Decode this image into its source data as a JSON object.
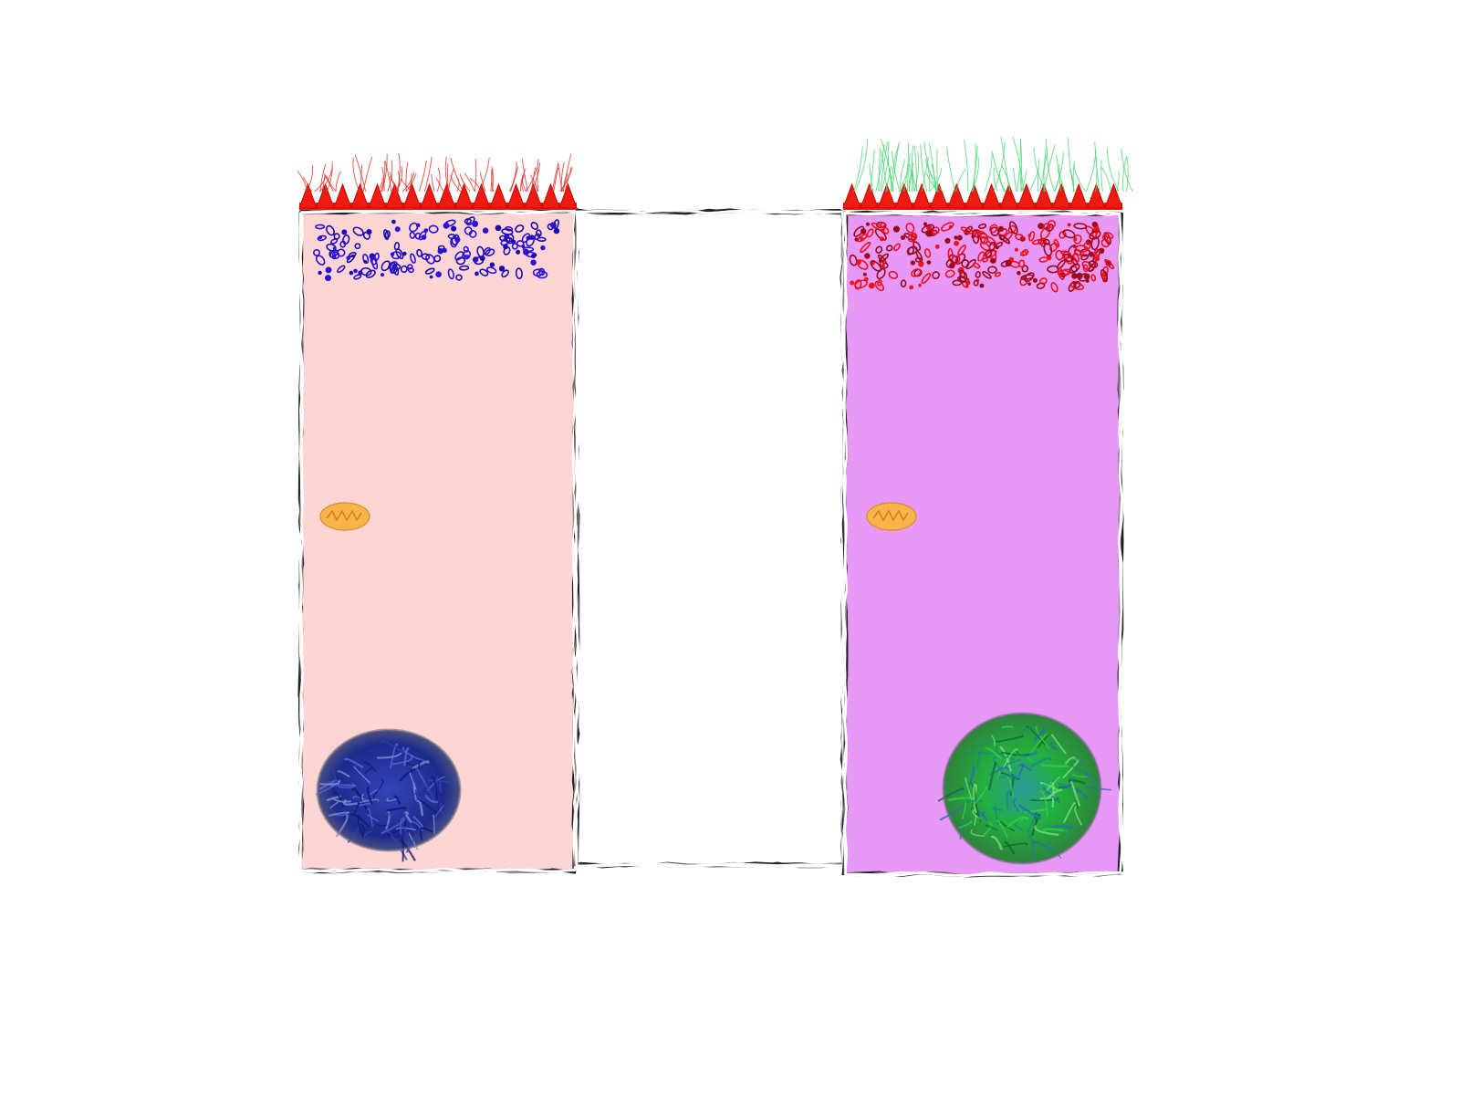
{
  "diagram": {
    "background": "#ffffff",
    "cells": [
      {
        "id": "left-cell",
        "fill": "#fdd5d5",
        "microvilli_color": "#f01a10",
        "glycocalyx_color": "#e03028",
        "vesicle_colors": [
          "#2a10d8",
          "#1c0bb0"
        ],
        "mitochondrion_color": "#f7b44a",
        "nucleus_color": "#23339a"
      },
      {
        "id": "middle-cell",
        "fill": "#ffffff"
      },
      {
        "id": "right-cell",
        "fill": "#e899f8",
        "microvilli_color": "#f01a10",
        "glycocalyx_color": "#49d672",
        "vesicle_colors": [
          "#9a0a1a",
          "#f0101e"
        ],
        "mitochondrion_color": "#f7b44a",
        "nucleus_color": "#1fa83a"
      }
    ],
    "membrane_colors": [
      "#222222",
      "#8a8a8a",
      "#ffffff"
    ]
  }
}
